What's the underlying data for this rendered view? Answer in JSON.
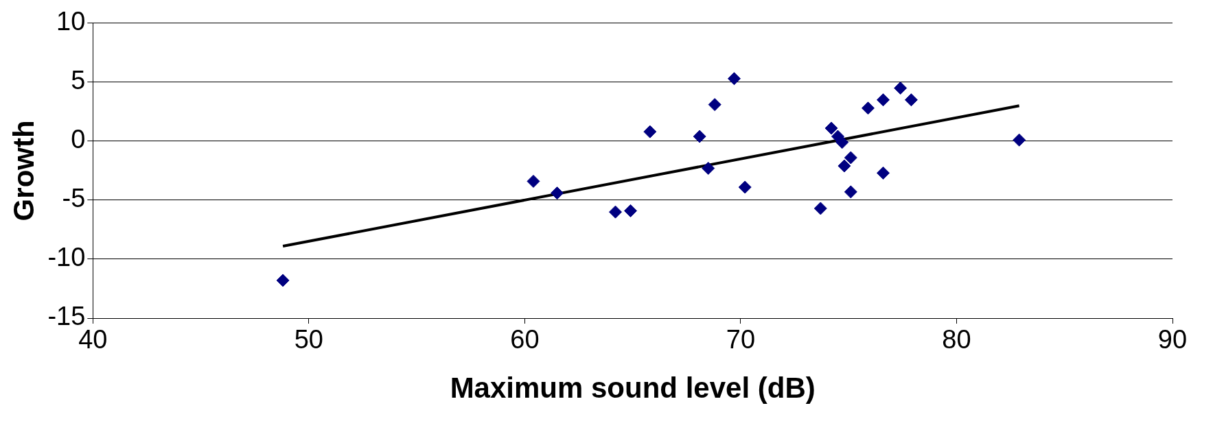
{
  "chart_data": {
    "type": "scatter",
    "xlabel": "Maximum sound level (dB)",
    "ylabel": "Growth",
    "xlim": [
      40,
      90
    ],
    "xticks": [
      40,
      50,
      60,
      70,
      80,
      90
    ],
    "ylim": [
      -15,
      10
    ],
    "yticks": [
      -15,
      -10,
      -5,
      0,
      5,
      10
    ],
    "grid": "y",
    "legend": false,
    "marker": "diamond",
    "series": [
      {
        "color": "#000080",
        "x": [
          48.8,
          60.4,
          61.5,
          64.2,
          64.9,
          65.8,
          68.1,
          68.5,
          68.8,
          69.7,
          70.2,
          73.7,
          74.2,
          74.5,
          74.7,
          74.8,
          75.1,
          75.1,
          75.9,
          76.6,
          76.6,
          77.4,
          77.9,
          82.9
        ],
        "values": [
          -11.8,
          -3.4,
          -4.4,
          -6.0,
          -5.9,
          0.8,
          0.4,
          -2.3,
          3.1,
          5.3,
          -3.9,
          -5.7,
          1.1,
          0.4,
          -0.1,
          -2.1,
          -1.4,
          -4.3,
          2.8,
          3.5,
          -2.7,
          4.5,
          3.5,
          0.1
        ]
      },
      {
        "type": "line",
        "color": "#000000",
        "marker": "none",
        "line_style": "solid",
        "x": [
          48.8,
          82.9
        ],
        "values": [
          -8.9,
          3.0
        ]
      }
    ]
  }
}
